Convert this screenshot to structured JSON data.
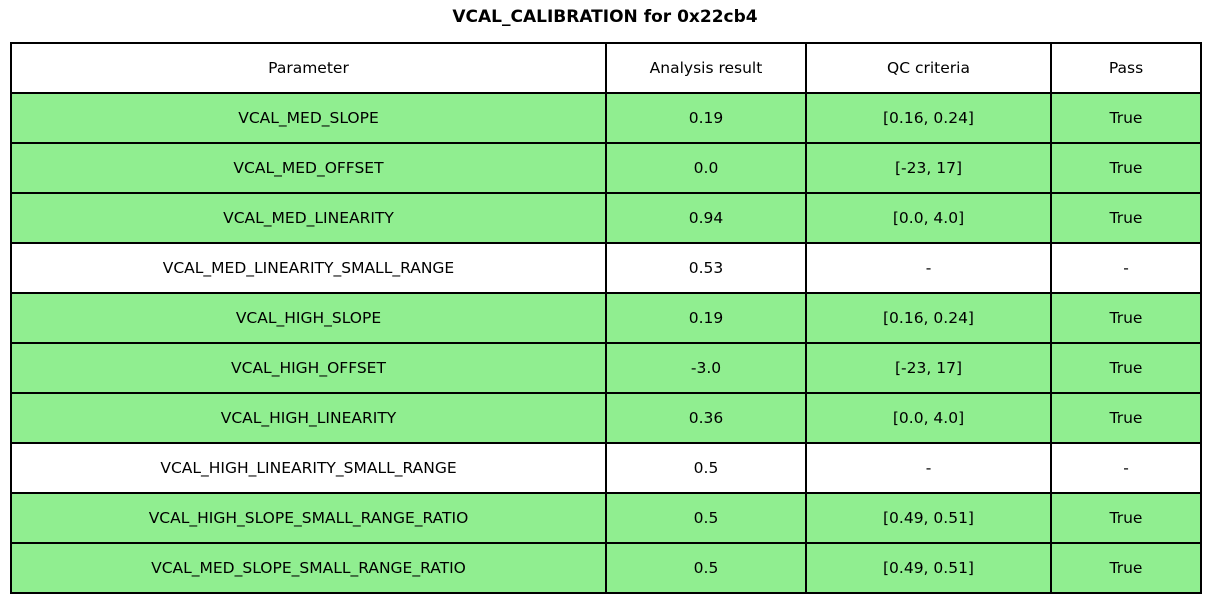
{
  "title": "VCAL_CALIBRATION for 0x22cb4",
  "colors": {
    "pass_row_green": "#90EE90",
    "neutral_row_white": "#FFFFFF",
    "border": "#000000",
    "text": "#000000"
  },
  "chart_data": {
    "type": "table",
    "title": "VCAL_CALIBRATION for 0x22cb4",
    "columns": [
      "Parameter",
      "Analysis result",
      "QC criteria",
      "Pass"
    ],
    "rows": [
      {
        "parameter": "VCAL_MED_SLOPE",
        "analysis_result": "0.19",
        "qc_criteria": "[0.16, 0.24]",
        "pass": "True",
        "highlight": true
      },
      {
        "parameter": "VCAL_MED_OFFSET",
        "analysis_result": "0.0",
        "qc_criteria": "[-23, 17]",
        "pass": "True",
        "highlight": true
      },
      {
        "parameter": "VCAL_MED_LINEARITY",
        "analysis_result": "0.94",
        "qc_criteria": "[0.0, 4.0]",
        "pass": "True",
        "highlight": true
      },
      {
        "parameter": "VCAL_MED_LINEARITY_SMALL_RANGE",
        "analysis_result": "0.53",
        "qc_criteria": "-",
        "pass": "-",
        "highlight": false
      },
      {
        "parameter": "VCAL_HIGH_SLOPE",
        "analysis_result": "0.19",
        "qc_criteria": "[0.16, 0.24]",
        "pass": "True",
        "highlight": true
      },
      {
        "parameter": "VCAL_HIGH_OFFSET",
        "analysis_result": "-3.0",
        "qc_criteria": "[-23, 17]",
        "pass": "True",
        "highlight": true
      },
      {
        "parameter": "VCAL_HIGH_LINEARITY",
        "analysis_result": "0.36",
        "qc_criteria": "[0.0, 4.0]",
        "pass": "True",
        "highlight": true
      },
      {
        "parameter": "VCAL_HIGH_LINEARITY_SMALL_RANGE",
        "analysis_result": "0.5",
        "qc_criteria": "-",
        "pass": "-",
        "highlight": false
      },
      {
        "parameter": "VCAL_HIGH_SLOPE_SMALL_RANGE_RATIO",
        "analysis_result": "0.5",
        "qc_criteria": "[0.49, 0.51]",
        "pass": "True",
        "highlight": true
      },
      {
        "parameter": "VCAL_MED_SLOPE_SMALL_RANGE_RATIO",
        "analysis_result": "0.5",
        "qc_criteria": "[0.49, 0.51]",
        "pass": "True",
        "highlight": true
      }
    ]
  }
}
